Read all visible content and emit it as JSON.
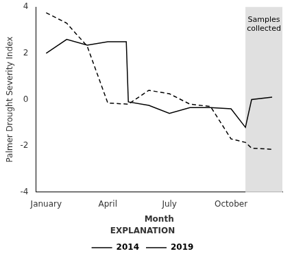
{
  "chart_data": {
    "type": "line",
    "xlabel": "Month",
    "ylabel": "Palmer Drought Severity Index",
    "xlim": [
      0.5,
      12.5
    ],
    "ylim": [
      -4,
      4
    ],
    "xticks": [
      {
        "value": 1,
        "label": "January"
      },
      {
        "value": 4,
        "label": "April"
      },
      {
        "value": 7,
        "label": "July"
      },
      {
        "value": 10,
        "label": "October"
      }
    ],
    "yticks": [
      -4,
      -2,
      0,
      2,
      4
    ],
    "grid": false,
    "legend": "bottom",
    "legend_title": "EXPLANATION",
    "spans": [
      {
        "start": 10.7,
        "end": 12.5,
        "color": "#e0e0e0"
      }
    ],
    "annotations": [
      {
        "text": "Samples\ncollected",
        "x": 11.6,
        "y": 3.6
      }
    ],
    "series": [
      {
        "name": "2014",
        "color": "#000000",
        "line_style": "solid",
        "x": [
          1,
          2,
          3,
          4,
          4.9,
          5,
          6,
          7,
          8,
          9,
          10,
          10.7,
          11,
          12
        ],
        "values": [
          2.0,
          2.6,
          2.35,
          2.5,
          2.5,
          -0.1,
          -0.25,
          -0.6,
          -0.35,
          -0.35,
          -0.4,
          -1.2,
          0.0,
          0.1
        ]
      },
      {
        "name": "2019",
        "color": "#000000",
        "line_style": "dashed",
        "x": [
          1,
          2,
          3,
          4,
          5,
          6,
          7,
          8,
          9,
          10,
          10.7,
          11,
          12
        ],
        "values": [
          3.75,
          3.3,
          2.3,
          -0.15,
          -0.2,
          0.4,
          0.25,
          -0.2,
          -0.3,
          -1.7,
          -1.85,
          -2.1,
          -2.15
        ]
      }
    ]
  }
}
